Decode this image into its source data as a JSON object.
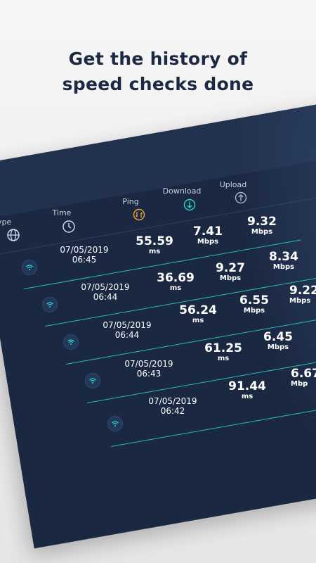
{
  "headline": {
    "line1": "Get the history of",
    "line2": "speed checks done"
  },
  "table": {
    "headers": {
      "type": "ype",
      "time": "Time",
      "ping": "Ping",
      "download": "Download",
      "upload": "Upload"
    },
    "rows": [
      {
        "date": "07/05/2019",
        "time": "06:45",
        "ping": "55.59",
        "ping_unit": "ms",
        "download": "7.41",
        "download_unit": "Mbps",
        "upload": "9.32",
        "upload_unit": "Mbps"
      },
      {
        "date": "07/05/2019",
        "time": "06:44",
        "ping": "36.69",
        "ping_unit": "ms",
        "download": "9.27",
        "download_unit": "Mbps",
        "upload": "8.34",
        "upload_unit": "Mbps"
      },
      {
        "date": "07/05/2019",
        "time": "06:44",
        "ping": "56.24",
        "ping_unit": "ms",
        "download": "6.55",
        "download_unit": "Mbps",
        "upload": "9.22",
        "upload_unit": "Mbps"
      },
      {
        "date": "07/05/2019",
        "time": "06:43",
        "ping": "61.25",
        "ping_unit": "ms",
        "download": "6.45",
        "download_unit": "Mbps",
        "upload": "",
        "upload_unit": ""
      },
      {
        "date": "07/05/2019",
        "time": "06:42",
        "ping": "91.44",
        "ping_unit": "ms",
        "download": "6.67",
        "download_unit": "Mbp",
        "upload": "",
        "upload_unit": ""
      }
    ]
  },
  "colors": {
    "panel": "#1b2842",
    "accent_teal": "#2ad6c7",
    "ping_orange": "#f2a531",
    "headline": "#1d2942"
  },
  "icons": {
    "type": "globe-icon",
    "time": "clock-icon",
    "ping": "ping-icon",
    "download": "download-icon",
    "upload": "upload-icon",
    "row": "wifi-icon"
  }
}
